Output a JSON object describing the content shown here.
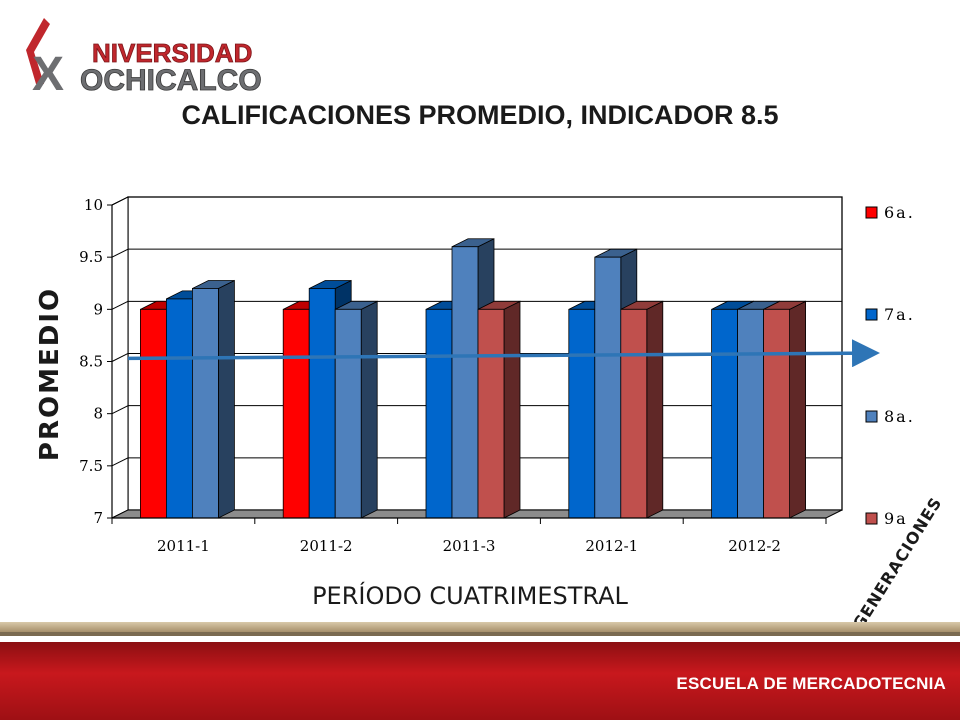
{
  "logo": {
    "line1": "NIVERSIDAD",
    "line2": "OCHICALCO",
    "initial_x": "X",
    "colors": {
      "red": "#c0272d",
      "gray": "#6d6e71"
    }
  },
  "footer": {
    "school": "ESCUELA DE MERCADOTECNIA"
  },
  "chart_data": {
    "type": "bar",
    "title": "CALIFICACIONES PROMEDIO, INDICADOR 8.5",
    "xlabel": "PERÍODO CUATRIMESTRAL",
    "ylabel": "PROMEDIO",
    "legend_title": "GENERACIONES",
    "legend_position": "right",
    "categories": [
      "2011-1",
      "2011-2",
      "2011-3",
      "2012-1",
      "2012-2"
    ],
    "ylim": [
      7,
      10
    ],
    "yticks": [
      "7",
      "7.5",
      "8",
      "8.5",
      "9",
      "9.5",
      "10"
    ],
    "grid": true,
    "series": [
      {
        "name": "6a.",
        "color": "#ff0000",
        "values": [
          9,
          9,
          null,
          null,
          null
        ]
      },
      {
        "name": "7a.",
        "color": "#0066cc",
        "values": [
          9.1,
          9.2,
          9,
          9,
          9
        ]
      },
      {
        "name": "8a.",
        "color": "#4f81bd",
        "values": [
          9.2,
          9,
          9.6,
          9.5,
          9
        ]
      },
      {
        "name": "9a",
        "color": "#c0504d",
        "values": [
          null,
          null,
          9,
          9,
          9
        ]
      }
    ],
    "trend_line": {
      "start": 8.53,
      "end": 8.58,
      "color": "#2e75b6"
    }
  }
}
